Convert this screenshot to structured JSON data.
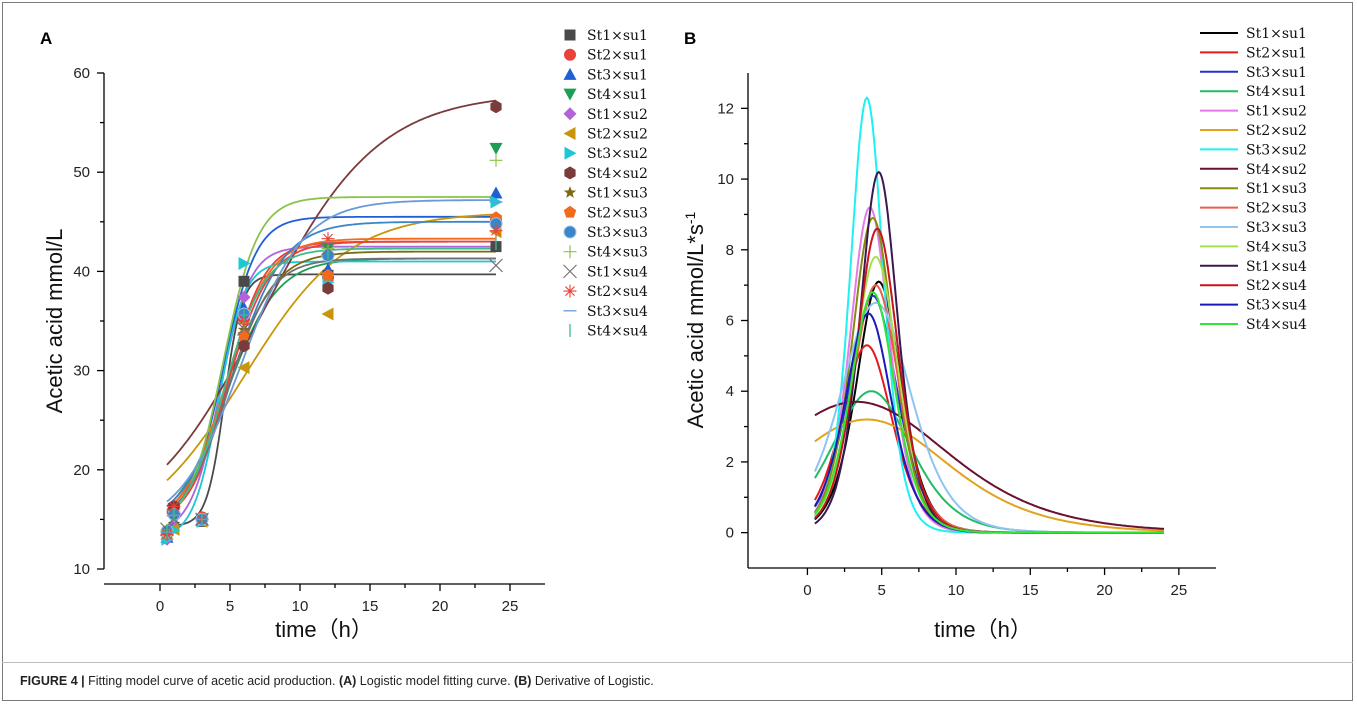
{
  "caption": {
    "label": "FIGURE 4 |",
    "text": "Fitting model curve of acetic acid production.",
    "a_label": "(A)",
    "a_text": "Logistic model fitting curve.",
    "b_label": "(B)",
    "b_text": "Derivative of Logistic."
  },
  "series_names": [
    "St1×su1",
    "St2×su1",
    "St3×su1",
    "St4×su1",
    "St1×su2",
    "St2×su2",
    "St3×su2",
    "St4×su2",
    "St1×su3",
    "St2×su3",
    "St3×su3",
    "St4×su3",
    "St1×su4",
    "St2×su4",
    "St3×su4",
    "St4×su4"
  ],
  "chart_data": [
    {
      "panel": "A",
      "type": "scatter",
      "xlabel": "time（h）",
      "ylabel": "Acetic acid mmol/L",
      "xlim": [
        -4,
        27.5
      ],
      "ylim": [
        10,
        60
      ],
      "xticks": [
        0,
        5,
        10,
        15,
        20,
        25
      ],
      "yticks": [
        10,
        20,
        30,
        40,
        50,
        60
      ],
      "x": [
        0.5,
        1,
        3,
        6,
        12,
        24
      ],
      "legend_position": "right",
      "series": [
        {
          "name": "St1×su1",
          "marker": "square",
          "color": "#4a4a4a",
          "values": [
            13.6,
            14.2,
            14.8,
            39.0,
            39.6,
            42.5
          ],
          "fit": {
            "A": 14.3,
            "K": 39.7,
            "r": 1.6,
            "t0": 4.6
          }
        },
        {
          "name": "St2×su1",
          "marker": "circle",
          "color": "#e8423a",
          "values": [
            13.8,
            16.3,
            15.2,
            35.2,
            39.4,
            45.2
          ],
          "fit": {
            "A": 14.5,
            "K": 43.0,
            "r": 0.75,
            "t0": 4.8
          }
        },
        {
          "name": "St3×su1",
          "marker": "triangle-up",
          "color": "#1f5fd6",
          "values": [
            13.2,
            14.8,
            15.0,
            36.3,
            40.2,
            47.9
          ],
          "fit": {
            "A": 14.8,
            "K": 45.5,
            "r": 0.85,
            "t0": 4.5
          }
        },
        {
          "name": "St4×su1",
          "marker": "triangle-down",
          "color": "#1e9e54",
          "values": [
            13.4,
            16.1,
            15.0,
            33.3,
            42.3,
            52.4
          ],
          "fit": {
            "A": 13.8,
            "K": 41.3,
            "r": 0.55,
            "t0": 4.7
          }
        },
        {
          "name": "St1×su2",
          "marker": "diamond",
          "color": "#b064d8",
          "values": [
            13.0,
            14.4,
            15.0,
            37.4,
            41.5,
            45.0
          ],
          "fit": {
            "A": 13.5,
            "K": 42.5,
            "r": 0.95,
            "t0": 4.3
          }
        },
        {
          "name": "St2×su2",
          "marker": "triangle-left",
          "color": "#c8960a",
          "values": [
            13.6,
            14.0,
            14.8,
            30.3,
            35.7,
            44.0
          ],
          "fit": {
            "A": 12.8,
            "K": 46.0,
            "r": 0.27,
            "t0": 6.0
          }
        },
        {
          "name": "St3×su2",
          "marker": "triangle-right",
          "color": "#1cc8d4",
          "values": [
            13.0,
            13.9,
            14.8,
            40.8,
            38.9,
            47.0
          ],
          "fit": {
            "A": 13.0,
            "K": 41.0,
            "r": 1.1,
            "t0": 4.2
          }
        },
        {
          "name": "St4×su2",
          "marker": "hexagon",
          "color": "#7a3b3b",
          "values": [
            13.7,
            16.3,
            15.0,
            32.5,
            38.3,
            56.6
          ],
          "fit": {
            "A": 13.0,
            "K": 58.0,
            "r": 0.24,
            "t0": 7.2
          }
        },
        {
          "name": "St1×su3",
          "marker": "star",
          "color": "#7b6a14",
          "values": [
            13.8,
            15.2,
            15.0,
            34.1,
            41.6,
            45.2
          ],
          "fit": {
            "A": 14.0,
            "K": 42.0,
            "r": 0.6,
            "t0": 4.8
          }
        },
        {
          "name": "St2×su3",
          "marker": "pentagon",
          "color": "#f26a1b",
          "values": [
            13.6,
            15.6,
            15.0,
            33.6,
            39.6,
            45.4
          ],
          "fit": {
            "A": 14.2,
            "K": 43.3,
            "r": 0.65,
            "t0": 4.7
          }
        },
        {
          "name": "St3×su3",
          "marker": "sphere",
          "color": "#3a86c8",
          "values": [
            13.8,
            15.5,
            15.0,
            35.7,
            41.6,
            44.8
          ],
          "fit": {
            "A": 14.2,
            "K": 45.0,
            "r": 0.55,
            "t0": 5.2
          }
        },
        {
          "name": "St4×su3",
          "marker": "plus",
          "color": "#8bc34a",
          "values": [
            13.9,
            15.4,
            15.0,
            34.8,
            42.3,
            51.2
          ],
          "fit": {
            "A": 14.0,
            "K": 47.5,
            "r": 0.8,
            "t0": 4.5
          }
        },
        {
          "name": "St1×su4",
          "marker": "x",
          "color": "#707070",
          "values": [
            14.0,
            15.0,
            15.0,
            34.2,
            42.3,
            40.6
          ],
          "fit": {
            "A": 14.2,
            "K": 41.3,
            "r": 0.65,
            "t0": 4.8
          }
        },
        {
          "name": "St2×su4",
          "marker": "asterisk",
          "color": "#e8423a",
          "values": [
            13.5,
            16.3,
            15.0,
            35.1,
            43.3,
            44.1
          ],
          "fit": {
            "A": 14.0,
            "K": 43.0,
            "r": 0.65,
            "t0": 4.8
          }
        },
        {
          "name": "St3×su4",
          "marker": "hline",
          "color": "#6a9ad6",
          "values": [
            13.7,
            15.4,
            15.0,
            35.6,
            43.0,
            47.0
          ],
          "fit": {
            "A": 14.0,
            "K": 47.2,
            "r": 0.45,
            "t0": 5.8
          }
        },
        {
          "name": "St4×su4",
          "marker": "vline",
          "color": "#3dbb8b",
          "values": [
            13.9,
            15.5,
            15.0,
            35.6,
            41.8,
            42.8
          ],
          "fit": {
            "A": 14.0,
            "K": 42.3,
            "r": 0.7,
            "t0": 4.6
          }
        }
      ]
    },
    {
      "panel": "B",
      "type": "line",
      "xlabel": "time（h）",
      "ylabel": "Acetic acid mmol/L*s",
      "ylabel_sup": "-1",
      "xlim": [
        -4,
        27.5
      ],
      "ylim": [
        -1,
        13
      ],
      "xticks": [
        0,
        5,
        10,
        15,
        20,
        25
      ],
      "yticks": [
        0,
        2,
        4,
        6,
        8,
        10,
        12
      ],
      "x_range": [
        0.5,
        24
      ],
      "legend_position": "top-right",
      "series": [
        {
          "name": "St1×su1",
          "color": "#000000",
          "peak": 7.1,
          "t0": 4.8,
          "w": 1.0
        },
        {
          "name": "St2×su1",
          "color": "#e41a1c",
          "peak": 5.3,
          "t0": 4.0,
          "w": 1.15
        },
        {
          "name": "St3×su1",
          "color": "#2233cc",
          "peak": 6.7,
          "t0": 4.4,
          "w": 1.1
        },
        {
          "name": "St4×su1",
          "color": "#22bb66",
          "peak": 4.0,
          "t0": 4.3,
          "w": 1.8
        },
        {
          "name": "St1×su2",
          "color": "#e27be8",
          "peak": 9.2,
          "t0": 4.2,
          "w": 0.9
        },
        {
          "name": "St2×su2",
          "color": "#e3a21a",
          "peak": 3.2,
          "t0": 4.0,
          "w": 3.7
        },
        {
          "name": "St3×su2",
          "color": "#1ff0f0",
          "peak": 12.3,
          "t0": 4.0,
          "w": 0.75
        },
        {
          "name": "St4×su2",
          "color": "#6b1030",
          "peak": 3.7,
          "t0": 3.3,
          "w": 4.2
        },
        {
          "name": "St1×su3",
          "color": "#8a8a12",
          "peak": 8.9,
          "t0": 4.4,
          "w": 0.95
        },
        {
          "name": "St2×su3",
          "color": "#f05a4a",
          "peak": 7.0,
          "t0": 4.6,
          "w": 1.05
        },
        {
          "name": "St3×su3",
          "color": "#8fc4f0",
          "peak": 6.5,
          "t0": 4.6,
          "w": 1.6
        },
        {
          "name": "St4×su3",
          "color": "#a7e04f",
          "peak": 7.8,
          "t0": 4.6,
          "w": 1.0
        },
        {
          "name": "St1×su4",
          "color": "#3b1850",
          "peak": 10.2,
          "t0": 4.8,
          "w": 0.85
        },
        {
          "name": "St2×su4",
          "color": "#c8141a",
          "peak": 8.6,
          "t0": 4.7,
          "w": 0.95
        },
        {
          "name": "St3×su4",
          "color": "#1a1ab8",
          "peak": 6.2,
          "t0": 4.1,
          "w": 1.05
        },
        {
          "name": "St4×su4",
          "color": "#33e633",
          "peak": 6.8,
          "t0": 4.4,
          "w": 1.0
        }
      ]
    }
  ],
  "panels": {
    "a_letter": "A",
    "b_letter": "B"
  }
}
